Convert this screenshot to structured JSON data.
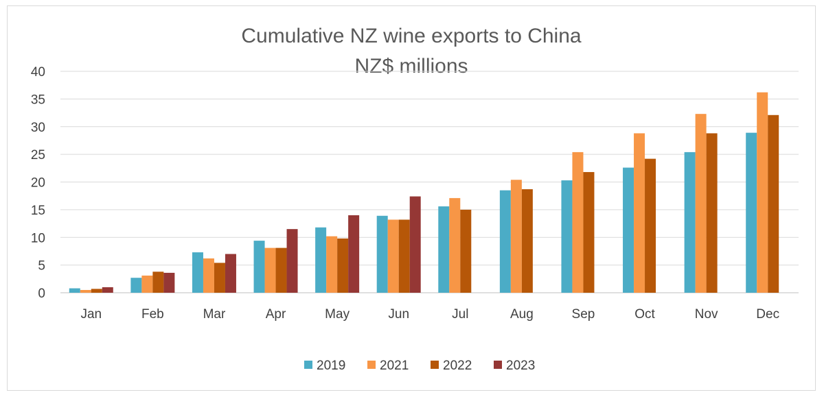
{
  "chart_data": {
    "type": "bar",
    "title": "Cumulative NZ wine exports to China",
    "subtitle": "NZ$ millions",
    "categories": [
      "Jan",
      "Feb",
      "Mar",
      "Apr",
      "May",
      "Jun",
      "Jul",
      "Aug",
      "Sep",
      "Oct",
      "Nov",
      "Dec"
    ],
    "series": [
      {
        "name": "2019",
        "color": "#4bacc6",
        "values": [
          0.8,
          2.7,
          7.3,
          9.4,
          11.8,
          13.9,
          15.6,
          18.5,
          20.3,
          22.6,
          25.4,
          28.9
        ]
      },
      {
        "name": "2021",
        "color": "#f79646",
        "values": [
          0.5,
          3.1,
          6.2,
          8.1,
          10.2,
          13.2,
          17.1,
          20.4,
          25.4,
          28.8,
          32.3,
          36.2
        ]
      },
      {
        "name": "2022",
        "color": "#b65708",
        "values": [
          0.7,
          3.8,
          5.4,
          8.1,
          9.8,
          13.2,
          15.0,
          18.7,
          21.8,
          24.2,
          28.8,
          32.1
        ]
      },
      {
        "name": "2023",
        "color": "#953735",
        "values": [
          1.0,
          3.6,
          7.0,
          11.5,
          14.0,
          17.4,
          null,
          null,
          null,
          null,
          null,
          null
        ]
      }
    ],
    "ylim": [
      0,
      40
    ],
    "yticks": [
      0,
      5,
      10,
      15,
      20,
      25,
      30,
      35,
      40
    ],
    "grid": true,
    "legend_position": "bottom",
    "xlabel": "",
    "ylabel": ""
  }
}
